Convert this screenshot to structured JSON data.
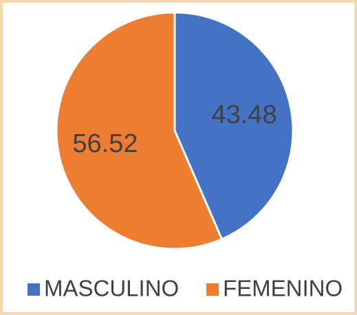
{
  "chart_data": {
    "type": "pie",
    "categories": [
      "MASCULINO",
      "FEMENINO"
    ],
    "values": [
      43.48,
      56.52
    ],
    "colors": [
      "#4472c4",
      "#ed7d31"
    ],
    "legend": "bottom"
  }
}
